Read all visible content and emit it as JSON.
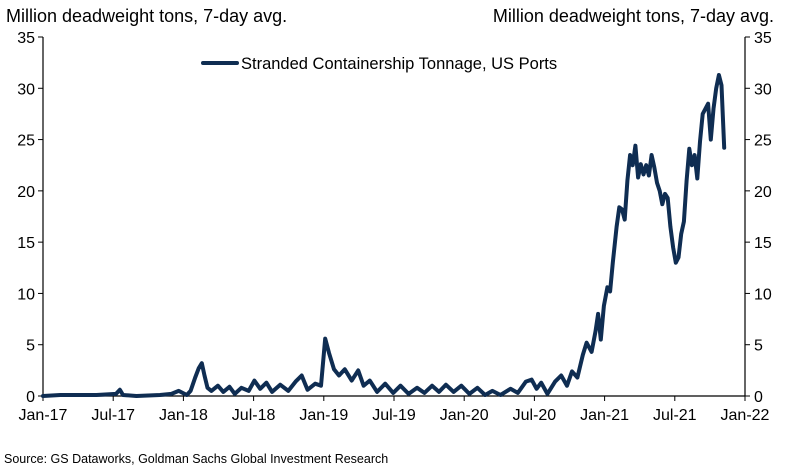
{
  "chart_data": {
    "type": "line",
    "y_unit_label_left": "Million deadweight tons, 7-day avg.",
    "y_unit_label_right": "Million deadweight tons, 7-day  avg.",
    "ylim": [
      0,
      35
    ],
    "y_ticks": [
      "0",
      "5",
      "10",
      "15",
      "20",
      "25",
      "30",
      "35"
    ],
    "x_ticks": [
      "Jan-17",
      "Jul-17",
      "Jan-18",
      "Jul-18",
      "Jan-19",
      "Jul-19",
      "Jan-20",
      "Jul-20",
      "Jan-21",
      "Jul-21",
      "Jan-22"
    ],
    "legend_position": "top-center",
    "grid": false,
    "line_color": "#0f2d52",
    "series": [
      {
        "name": "Stranded Containership Tonnage, US Ports",
        "points": [
          [
            "2017-01-01",
            0.0
          ],
          [
            "2017-02-15",
            0.1
          ],
          [
            "2017-04-01",
            0.1
          ],
          [
            "2017-05-20",
            0.1
          ],
          [
            "2017-07-10",
            0.2
          ],
          [
            "2017-07-20",
            0.6
          ],
          [
            "2017-07-28",
            0.1
          ],
          [
            "2017-09-01",
            0.0
          ],
          [
            "2017-11-01",
            0.1
          ],
          [
            "2017-12-01",
            0.2
          ],
          [
            "2017-12-20",
            0.5
          ],
          [
            "2018-01-10",
            0.1
          ],
          [
            "2018-01-20",
            0.5
          ],
          [
            "2018-02-01",
            1.8
          ],
          [
            "2018-02-10",
            2.7
          ],
          [
            "2018-02-18",
            3.2
          ],
          [
            "2018-02-25",
            2.0
          ],
          [
            "2018-03-05",
            0.8
          ],
          [
            "2018-03-15",
            0.5
          ],
          [
            "2018-04-01",
            1.0
          ],
          [
            "2018-04-15",
            0.4
          ],
          [
            "2018-05-01",
            0.9
          ],
          [
            "2018-05-15",
            0.2
          ],
          [
            "2018-06-01",
            0.8
          ],
          [
            "2018-06-20",
            0.5
          ],
          [
            "2018-07-05",
            1.5
          ],
          [
            "2018-07-20",
            0.7
          ],
          [
            "2018-08-05",
            1.3
          ],
          [
            "2018-08-20",
            0.4
          ],
          [
            "2018-09-10",
            1.1
          ],
          [
            "2018-10-01",
            0.5
          ],
          [
            "2018-10-20",
            1.4
          ],
          [
            "2018-11-05",
            2.0
          ],
          [
            "2018-11-20",
            0.6
          ],
          [
            "2018-12-10",
            1.2
          ],
          [
            "2018-12-25",
            1.0
          ],
          [
            "2019-01-05",
            5.6
          ],
          [
            "2019-01-15",
            4.2
          ],
          [
            "2019-01-28",
            2.6
          ],
          [
            "2019-02-10",
            2.0
          ],
          [
            "2019-02-25",
            2.6
          ],
          [
            "2019-03-15",
            1.5
          ],
          [
            "2019-04-01",
            2.5
          ],
          [
            "2019-04-15",
            1.0
          ],
          [
            "2019-05-01",
            1.5
          ],
          [
            "2019-05-20",
            0.4
          ],
          [
            "2019-06-10",
            1.2
          ],
          [
            "2019-07-01",
            0.3
          ],
          [
            "2019-07-20",
            1.0
          ],
          [
            "2019-08-10",
            0.2
          ],
          [
            "2019-09-01",
            0.8
          ],
          [
            "2019-09-20",
            0.3
          ],
          [
            "2019-10-10",
            1.0
          ],
          [
            "2019-10-28",
            0.4
          ],
          [
            "2019-11-15",
            1.1
          ],
          [
            "2019-12-05",
            0.4
          ],
          [
            "2019-12-25",
            1.0
          ],
          [
            "2020-01-15",
            0.2
          ],
          [
            "2020-02-05",
            0.8
          ],
          [
            "2020-02-25",
            0.1
          ],
          [
            "2020-03-15",
            0.5
          ],
          [
            "2020-04-05",
            0.1
          ],
          [
            "2020-05-01",
            0.7
          ],
          [
            "2020-05-20",
            0.3
          ],
          [
            "2020-06-10",
            1.4
          ],
          [
            "2020-06-25",
            1.6
          ],
          [
            "2020-07-08",
            0.7
          ],
          [
            "2020-07-20",
            1.3
          ],
          [
            "2020-08-05",
            0.2
          ],
          [
            "2020-08-25",
            1.4
          ],
          [
            "2020-09-10",
            2.0
          ],
          [
            "2020-09-25",
            1.0
          ],
          [
            "2020-10-08",
            2.4
          ],
          [
            "2020-10-22",
            1.8
          ],
          [
            "2020-11-05",
            4.0
          ],
          [
            "2020-11-15",
            5.2
          ],
          [
            "2020-11-28",
            4.3
          ],
          [
            "2020-12-08",
            6.3
          ],
          [
            "2020-12-15",
            8.0
          ],
          [
            "2020-12-22",
            5.5
          ],
          [
            "2020-12-30",
            8.8
          ],
          [
            "2021-01-08",
            10.6
          ],
          [
            "2021-01-15",
            10.2
          ],
          [
            "2021-01-22",
            13.0
          ],
          [
            "2021-02-01",
            16.5
          ],
          [
            "2021-02-08",
            18.4
          ],
          [
            "2021-02-15",
            18.2
          ],
          [
            "2021-02-22",
            17.2
          ],
          [
            "2021-03-01",
            21.0
          ],
          [
            "2021-03-08",
            23.5
          ],
          [
            "2021-03-15",
            22.5
          ],
          [
            "2021-03-22",
            24.4
          ],
          [
            "2021-03-29",
            21.3
          ],
          [
            "2021-04-05",
            22.6
          ],
          [
            "2021-04-12",
            21.6
          ],
          [
            "2021-04-19",
            22.5
          ],
          [
            "2021-04-26",
            21.5
          ],
          [
            "2021-05-03",
            23.5
          ],
          [
            "2021-05-10",
            22.3
          ],
          [
            "2021-05-17",
            20.8
          ],
          [
            "2021-05-24",
            20.0
          ],
          [
            "2021-05-31",
            18.7
          ],
          [
            "2021-06-07",
            19.7
          ],
          [
            "2021-06-14",
            19.3
          ],
          [
            "2021-06-21",
            16.5
          ],
          [
            "2021-06-28",
            14.5
          ],
          [
            "2021-07-05",
            13.0
          ],
          [
            "2021-07-12",
            13.5
          ],
          [
            "2021-07-19",
            15.8
          ],
          [
            "2021-07-26",
            17.0
          ],
          [
            "2021-08-02",
            21.0
          ],
          [
            "2021-08-09",
            24.1
          ],
          [
            "2021-08-16",
            22.5
          ],
          [
            "2021-08-23",
            23.5
          ],
          [
            "2021-08-30",
            21.2
          ],
          [
            "2021-09-06",
            24.8
          ],
          [
            "2021-09-13",
            27.5
          ],
          [
            "2021-09-20",
            28.0
          ],
          [
            "2021-09-27",
            28.5
          ],
          [
            "2021-10-04",
            25.0
          ],
          [
            "2021-10-11",
            28.0
          ],
          [
            "2021-10-18",
            30.0
          ],
          [
            "2021-10-25",
            31.3
          ],
          [
            "2021-11-01",
            30.3
          ],
          [
            "2021-11-08",
            24.2
          ]
        ]
      }
    ]
  },
  "footer": {
    "source": "Source: GS Dataworks, Goldman Sachs Global Investment Research"
  }
}
